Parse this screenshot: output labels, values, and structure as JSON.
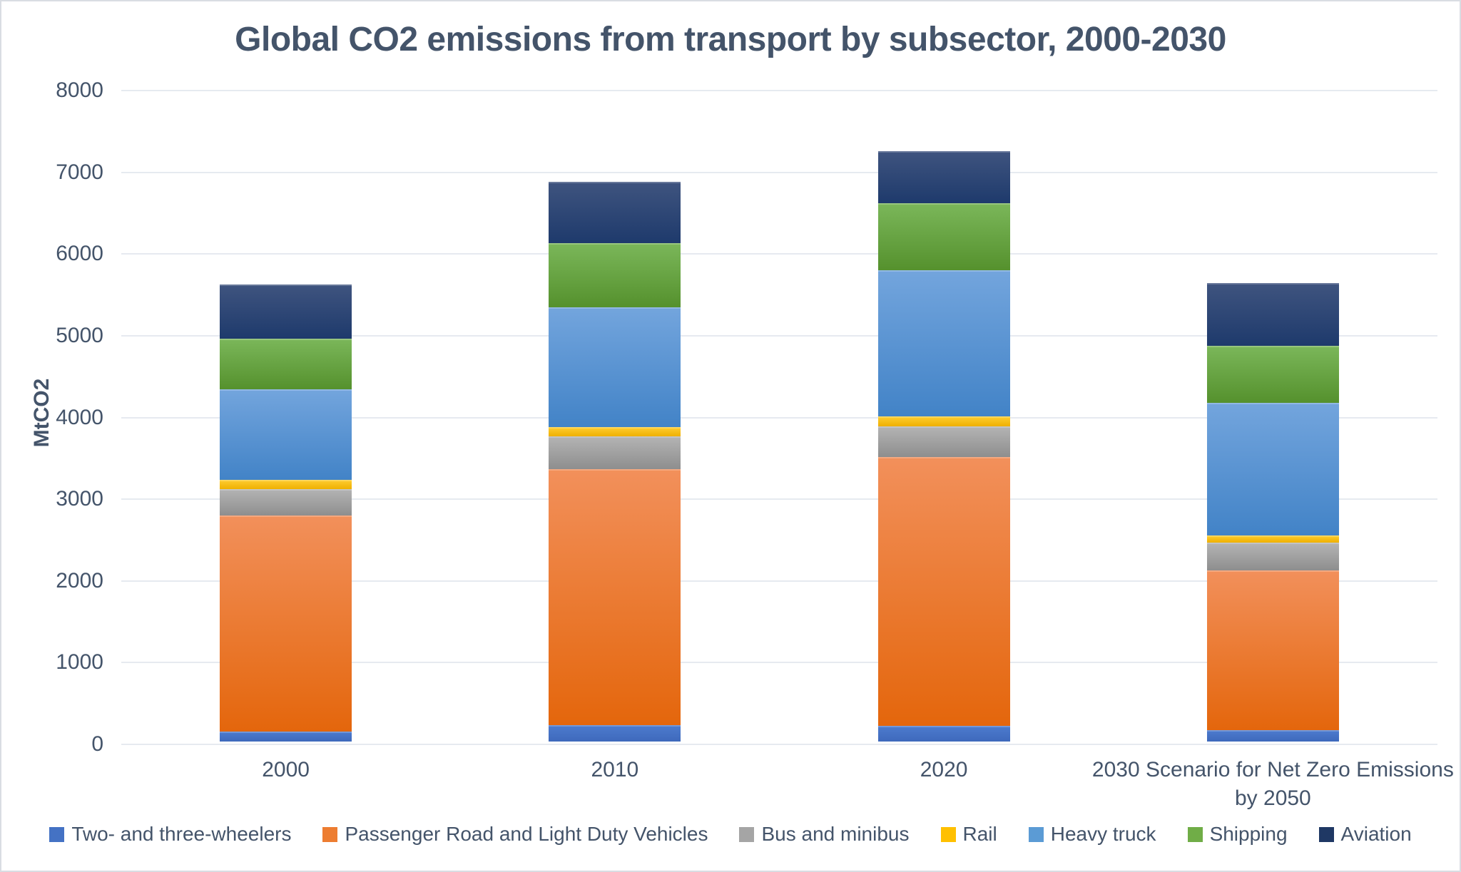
{
  "title": "Global CO2 emissions from transport by subsector, 2000-2030",
  "y_axis_title": "MtCO2",
  "text_color": "#44546A",
  "gridline_color": "#e6eaf0",
  "chart_data": {
    "type": "bar",
    "stacked": true,
    "title": "Global CO2 emissions from transport by subsector, 2000-2030",
    "xlabel": "",
    "ylabel": "MtCO2",
    "ylim": [
      0,
      8000
    ],
    "ytick_step": 1000,
    "ytick_labels": [
      "0",
      "1000",
      "2000",
      "3000",
      "4000",
      "5000",
      "6000",
      "7000",
      "8000"
    ],
    "grid": true,
    "legend_position": "bottom",
    "categories": [
      "2000",
      "2010",
      "2020",
      "2030 Scenario for Net Zero Emissions\nby 2050"
    ],
    "series": [
      {
        "name": "Two- and three-wheelers",
        "color": "#4472C4",
        "gradient": [
          "#4d7bce",
          "#3e69bc"
        ],
        "values": [
          120,
          200,
          190,
          140
        ]
      },
      {
        "name": "Passenger Road and Light Duty Vehicles",
        "color": "#ED7D31",
        "gradient": [
          "#f2905b",
          "#e4660c"
        ],
        "values": [
          2650,
          3130,
          3290,
          1950
        ]
      },
      {
        "name": "Bus and minibus",
        "color": "#A5A5A5",
        "gradient": [
          "#b4b4b4",
          "#8e8e8e"
        ],
        "values": [
          320,
          400,
          380,
          340
        ]
      },
      {
        "name": "Rail",
        "color": "#FFC000",
        "gradient": [
          "#ffcd32",
          "#efb000"
        ],
        "values": [
          110,
          120,
          120,
          90
        ]
      },
      {
        "name": "Heavy truck",
        "color": "#5B9BD5",
        "gradient": [
          "#73a5dd",
          "#4283c7"
        ],
        "values": [
          1110,
          1460,
          1790,
          1620
        ]
      },
      {
        "name": "Shipping",
        "color": "#70AD47",
        "gradient": [
          "#7bb75a",
          "#55912d"
        ],
        "values": [
          620,
          790,
          820,
          700
        ]
      },
      {
        "name": "Aviation",
        "color": "#1F3864",
        "gradient": [
          "#3f547f",
          "#1e3a6c"
        ],
        "values": [
          660,
          750,
          630,
          770
        ]
      }
    ],
    "totals": [
      5590,
      6850,
      7220,
      5610
    ]
  }
}
